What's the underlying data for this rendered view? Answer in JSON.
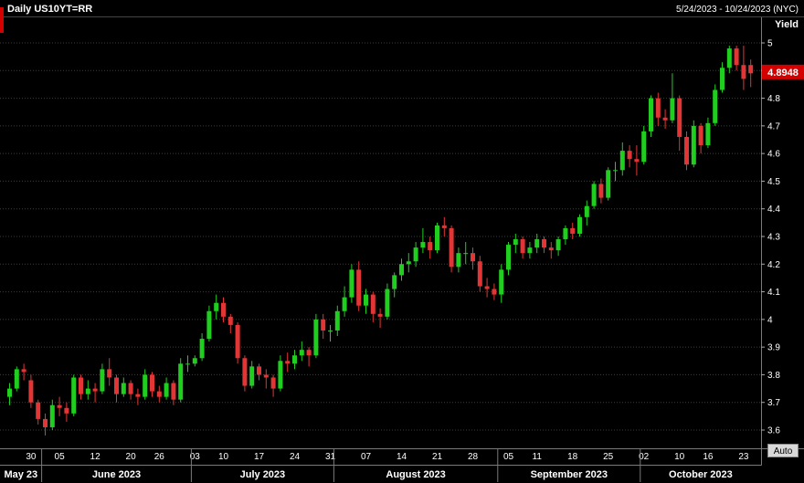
{
  "header": {
    "title": "Daily US10YT=RR",
    "date_range": "5/24/2023 - 10/24/2023 (NYC)"
  },
  "axis": {
    "y_title": "Yield",
    "last_price": "4.8948",
    "auto_label": "Auto"
  },
  "colors": {
    "up_candle": "#1fce1f",
    "down_candle": "#e23535",
    "last_price_bg": "#d40000",
    "grid": "#3c3c3c",
    "frame": "#7a7a7a",
    "tick": "#aaaaaa",
    "background": "#000000",
    "text": "#ffffff"
  },
  "chart_data": {
    "type": "candlestick",
    "title": "Daily US10YT=RR",
    "xlabel": "",
    "ylabel": "Yield",
    "ylim": [
      3.6,
      5.0
    ],
    "grid": true,
    "y_ticks": [
      [
        5,
        "5"
      ],
      [
        4.9,
        "4.9"
      ],
      [
        4.8,
        "4.8"
      ],
      [
        4.7,
        "4.7"
      ],
      [
        4.6,
        "4.6"
      ],
      [
        4.5,
        "4.5"
      ],
      [
        4.4,
        "4.4"
      ],
      [
        4.3,
        "4.3"
      ],
      [
        4.2,
        "4.2"
      ],
      [
        4.1,
        "4.1"
      ],
      [
        4,
        "4"
      ],
      [
        3.9,
        "3.9"
      ],
      [
        3.8,
        "3.8"
      ],
      [
        3.7,
        "3.7"
      ],
      [
        3.6,
        "3.6"
      ]
    ],
    "x_ticks": [
      [
        3,
        "30"
      ],
      [
        7,
        "05"
      ],
      [
        12,
        "12"
      ],
      [
        17,
        "20"
      ],
      [
        21,
        "26"
      ],
      [
        26,
        "03"
      ],
      [
        30,
        "10"
      ],
      [
        35,
        "17"
      ],
      [
        40,
        "24"
      ],
      [
        45,
        "31"
      ],
      [
        50,
        "07"
      ],
      [
        55,
        "14"
      ],
      [
        60,
        "21"
      ],
      [
        65,
        "28"
      ],
      [
        70,
        "05"
      ],
      [
        74,
        "11"
      ],
      [
        79,
        "18"
      ],
      [
        84,
        "25"
      ],
      [
        89,
        "02"
      ],
      [
        94,
        "10"
      ],
      [
        98,
        "16"
      ],
      [
        103,
        "23"
      ]
    ],
    "months": [
      {
        "label": "May 23",
        "start": 0,
        "end": 4
      },
      {
        "label": "June 2023",
        "start": 5,
        "end": 25
      },
      {
        "label": "July 2023",
        "start": 26,
        "end": 45
      },
      {
        "label": "August 2023",
        "start": 46,
        "end": 68
      },
      {
        "label": "September 2023",
        "start": 69,
        "end": 88
      },
      {
        "label": "October 2023",
        "start": 89,
        "end": 104
      }
    ],
    "candles": [
      [
        "5/24",
        3.72,
        3.77,
        3.69,
        3.75
      ],
      [
        "5/25",
        3.75,
        3.83,
        3.74,
        3.82
      ],
      [
        "5/26",
        3.82,
        3.84,
        3.78,
        3.81
      ],
      [
        "5/30",
        3.78,
        3.8,
        3.68,
        3.7
      ],
      [
        "5/31",
        3.7,
        3.71,
        3.62,
        3.64
      ],
      [
        "6/1",
        3.64,
        3.66,
        3.58,
        3.61
      ],
      [
        "6/2",
        3.61,
        3.71,
        3.6,
        3.69
      ],
      [
        "6/5",
        3.69,
        3.72,
        3.65,
        3.68
      ],
      [
        "6/6",
        3.68,
        3.7,
        3.63,
        3.66
      ],
      [
        "6/7",
        3.66,
        3.8,
        3.65,
        3.79
      ],
      [
        "6/8",
        3.79,
        3.8,
        3.71,
        3.73
      ],
      [
        "6/9",
        3.73,
        3.78,
        3.71,
        3.75
      ],
      [
        "6/12",
        3.75,
        3.77,
        3.7,
        3.74
      ],
      [
        "6/13",
        3.74,
        3.84,
        3.73,
        3.82
      ],
      [
        "6/14",
        3.82,
        3.86,
        3.76,
        3.79
      ],
      [
        "6/15",
        3.79,
        3.8,
        3.7,
        3.73
      ],
      [
        "6/16",
        3.73,
        3.79,
        3.72,
        3.77
      ],
      [
        "6/20",
        3.77,
        3.78,
        3.71,
        3.73
      ],
      [
        "6/21",
        3.73,
        3.75,
        3.69,
        3.72
      ],
      [
        "6/22",
        3.72,
        3.82,
        3.71,
        3.8
      ],
      [
        "6/23",
        3.8,
        3.81,
        3.72,
        3.74
      ],
      [
        "6/26",
        3.74,
        3.76,
        3.7,
        3.72
      ],
      [
        "6/27",
        3.72,
        3.79,
        3.71,
        3.77
      ],
      [
        "6/28",
        3.77,
        3.78,
        3.69,
        3.71
      ],
      [
        "6/29",
        3.71,
        3.86,
        3.7,
        3.84
      ],
      [
        "6/30",
        3.84,
        3.87,
        3.81,
        3.84
      ],
      [
        "7/3",
        3.84,
        3.87,
        3.83,
        3.86
      ],
      [
        "7/5",
        3.86,
        3.95,
        3.85,
        3.93
      ],
      [
        "7/6",
        3.93,
        4.05,
        3.92,
        4.03
      ],
      [
        "7/7",
        4.03,
        4.09,
        4.0,
        4.06
      ],
      [
        "7/10",
        4.06,
        4.08,
        3.99,
        4.01
      ],
      [
        "7/11",
        4.01,
        4.02,
        3.95,
        3.98
      ],
      [
        "7/12",
        3.98,
        3.99,
        3.84,
        3.86
      ],
      [
        "7/13",
        3.86,
        3.87,
        3.74,
        3.76
      ],
      [
        "7/14",
        3.76,
        3.85,
        3.75,
        3.83
      ],
      [
        "7/17",
        3.83,
        3.84,
        3.78,
        3.8
      ],
      [
        "7/18",
        3.8,
        3.82,
        3.75,
        3.79
      ],
      [
        "7/19",
        3.79,
        3.8,
        3.72,
        3.75
      ],
      [
        "7/20",
        3.75,
        3.87,
        3.74,
        3.85
      ],
      [
        "7/21",
        3.85,
        3.88,
        3.81,
        3.84
      ],
      [
        "7/24",
        3.84,
        3.89,
        3.82,
        3.87
      ],
      [
        "7/25",
        3.87,
        3.92,
        3.85,
        3.89
      ],
      [
        "7/26",
        3.89,
        3.9,
        3.83,
        3.87
      ],
      [
        "7/27",
        3.87,
        4.02,
        3.86,
        4.0
      ],
      [
        "7/28",
        4.0,
        4.02,
        3.93,
        3.96
      ],
      [
        "7/31",
        3.96,
        3.98,
        3.92,
        3.96
      ],
      [
        "8/1",
        3.96,
        4.05,
        3.94,
        4.03
      ],
      [
        "8/2",
        4.03,
        4.12,
        4.01,
        4.08
      ],
      [
        "8/3",
        4.08,
        4.2,
        4.06,
        4.18
      ],
      [
        "8/4",
        4.18,
        4.21,
        4.03,
        4.05
      ],
      [
        "8/7",
        4.05,
        4.11,
        4.02,
        4.09
      ],
      [
        "8/8",
        4.09,
        4.1,
        3.99,
        4.02
      ],
      [
        "8/9",
        4.02,
        4.04,
        3.97,
        4.01
      ],
      [
        "8/10",
        4.01,
        4.13,
        4.0,
        4.11
      ],
      [
        "8/11",
        4.11,
        4.17,
        4.08,
        4.16
      ],
      [
        "8/14",
        4.16,
        4.22,
        4.14,
        4.2
      ],
      [
        "8/15",
        4.2,
        4.24,
        4.17,
        4.21
      ],
      [
        "8/16",
        4.21,
        4.28,
        4.19,
        4.26
      ],
      [
        "8/17",
        4.26,
        4.33,
        4.24,
        4.28
      ],
      [
        "8/18",
        4.28,
        4.3,
        4.22,
        4.25
      ],
      [
        "8/21",
        4.25,
        4.35,
        4.24,
        4.34
      ],
      [
        "8/22",
        4.34,
        4.37,
        4.3,
        4.33
      ],
      [
        "8/23",
        4.33,
        4.34,
        4.17,
        4.19
      ],
      [
        "8/24",
        4.19,
        4.26,
        4.17,
        4.24
      ],
      [
        "8/25",
        4.24,
        4.28,
        4.2,
        4.24
      ],
      [
        "8/28",
        4.24,
        4.26,
        4.18,
        4.21
      ],
      [
        "8/29",
        4.21,
        4.23,
        4.1,
        4.12
      ],
      [
        "8/30",
        4.12,
        4.15,
        4.08,
        4.11
      ],
      [
        "8/31",
        4.11,
        4.13,
        4.07,
        4.09
      ],
      [
        "9/1",
        4.09,
        4.2,
        4.06,
        4.18
      ],
      [
        "9/5",
        4.18,
        4.28,
        4.16,
        4.27
      ],
      [
        "9/6",
        4.27,
        4.31,
        4.24,
        4.29
      ],
      [
        "9/7",
        4.29,
        4.3,
        4.22,
        4.24
      ],
      [
        "9/8",
        4.24,
        4.28,
        4.22,
        4.26
      ],
      [
        "9/11",
        4.26,
        4.31,
        4.24,
        4.29
      ],
      [
        "9/12",
        4.29,
        4.3,
        4.24,
        4.26
      ],
      [
        "9/13",
        4.26,
        4.28,
        4.22,
        4.25
      ],
      [
        "9/14",
        4.25,
        4.3,
        4.23,
        4.29
      ],
      [
        "9/15",
        4.29,
        4.34,
        4.27,
        4.33
      ],
      [
        "9/18",
        4.33,
        4.35,
        4.29,
        4.31
      ],
      [
        "9/19",
        4.31,
        4.38,
        4.3,
        4.37
      ],
      [
        "9/20",
        4.37,
        4.43,
        4.34,
        4.41
      ],
      [
        "9/21",
        4.41,
        4.5,
        4.4,
        4.49
      ],
      [
        "9/22",
        4.49,
        4.51,
        4.42,
        4.44
      ],
      [
        "9/25",
        4.44,
        4.55,
        4.43,
        4.54
      ],
      [
        "9/26",
        4.54,
        4.57,
        4.5,
        4.54
      ],
      [
        "9/27",
        4.54,
        4.64,
        4.52,
        4.61
      ],
      [
        "9/28",
        4.61,
        4.63,
        4.55,
        4.58
      ],
      [
        "9/29",
        4.58,
        4.63,
        4.52,
        4.57
      ],
      [
        "10/2",
        4.57,
        4.7,
        4.56,
        4.68
      ],
      [
        "10/3",
        4.68,
        4.81,
        4.66,
        4.8
      ],
      [
        "10/4",
        4.8,
        4.82,
        4.7,
        4.73
      ],
      [
        "10/5",
        4.73,
        4.76,
        4.69,
        4.72
      ],
      [
        "10/6",
        4.72,
        4.89,
        4.71,
        4.8
      ],
      [
        "10/10",
        4.8,
        4.81,
        4.61,
        4.66
      ],
      [
        "10/11",
        4.66,
        4.68,
        4.54,
        4.56
      ],
      [
        "10/12",
        4.56,
        4.72,
        4.55,
        4.7
      ],
      [
        "10/13",
        4.7,
        4.71,
        4.6,
        4.63
      ],
      [
        "10/16",
        4.63,
        4.73,
        4.62,
        4.71
      ],
      [
        "10/17",
        4.71,
        4.85,
        4.7,
        4.83
      ],
      [
        "10/18",
        4.83,
        4.93,
        4.82,
        4.91
      ],
      [
        "10/19",
        4.91,
        4.99,
        4.89,
        4.98
      ],
      [
        "10/20",
        4.98,
        4.99,
        4.9,
        4.92
      ],
      [
        "10/23",
        4.92,
        4.99,
        4.83,
        4.87
      ],
      [
        "10/24",
        4.92,
        4.94,
        4.84,
        4.89
      ]
    ]
  }
}
